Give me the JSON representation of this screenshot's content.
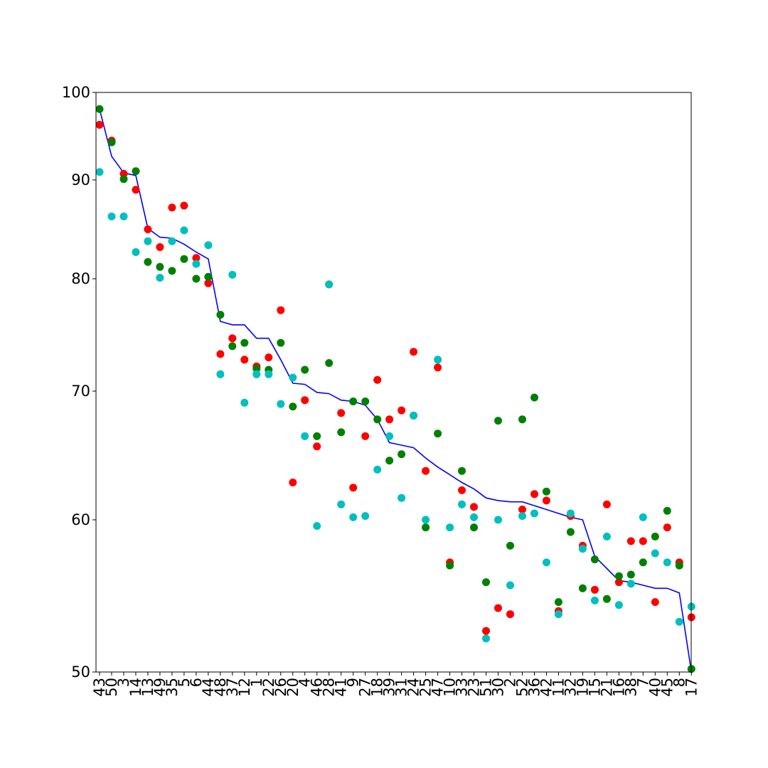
{
  "chart_data": {
    "type": "scatter",
    "title": "",
    "xlabel": "",
    "ylabel": "",
    "y_ticks": [
      50,
      60,
      70,
      80,
      90,
      100
    ],
    "ylim": [
      50,
      100
    ],
    "y_scale": "nonlinear (ticks 50, 60, 70, 80, 90, 100 unevenly spaced)",
    "grid": false,
    "legend": "none",
    "categories": [
      "43",
      "50",
      "3",
      "14",
      "13",
      "49",
      "35",
      "5",
      "6",
      "44",
      "48",
      "37",
      "12",
      "1",
      "22",
      "26",
      "20",
      "4",
      "46",
      "28",
      "41",
      "9",
      "27",
      "18",
      "39",
      "31",
      "24",
      "25",
      "47",
      "10",
      "33",
      "23",
      "51",
      "30",
      "2",
      "52",
      "36",
      "42",
      "11",
      "32",
      "19",
      "15",
      "21",
      "16",
      "38",
      "7",
      "40",
      "45",
      "8",
      "17"
    ],
    "series": [
      {
        "type": "line",
        "color": "#0000ff",
        "values": [
          98.1,
          92.7,
          90.8,
          90.5,
          85.1,
          84.2,
          84.1,
          83.5,
          82.7,
          82.0,
          76.2,
          75.9,
          75.9,
          74.7,
          74.7,
          72.8,
          70.7,
          70.6,
          69.9,
          69.8,
          69.3,
          69.2,
          68.9,
          67.8,
          66.0,
          65.8,
          65.6,
          64.8,
          64.1,
          63.5,
          62.9,
          62.4,
          61.7,
          61.5,
          61.4,
          61.4,
          61.1,
          60.8,
          60.5,
          60.2,
          60.0,
          57.6,
          56.8,
          56.0,
          55.9,
          55.7,
          55.5,
          55.5,
          55.2,
          50.0
        ]
      },
      {
        "type": "scatter",
        "color": "#ff0000",
        "values": [
          96.3,
          94.5,
          90.7,
          89.0,
          85.0,
          83.2,
          87.2,
          87.4,
          82.1,
          79.6,
          73.3,
          74.7,
          72.8,
          72.2,
          73.0,
          77.2,
          62.9,
          69.3,
          65.7,
          79.5,
          68.3,
          62.5,
          66.5,
          71.0,
          67.8,
          68.5,
          73.5,
          63.8,
          72.1,
          57.2,
          62.3,
          61.0,
          52.7,
          54.2,
          53.8,
          60.8,
          62.0,
          61.5,
          54.0,
          60.3,
          58.3,
          55.4,
          61.2,
          55.9,
          58.6,
          58.6,
          54.6,
          59.5,
          57.2,
          53.6
        ]
      },
      {
        "type": "scatter",
        "color": "#008000",
        "values": [
          98.1,
          94.3,
          90.1,
          91.0,
          81.7,
          81.2,
          80.8,
          82.0,
          80.0,
          80.2,
          76.8,
          74.0,
          74.3,
          72.0,
          71.9,
          74.3,
          68.8,
          71.9,
          66.5,
          72.5,
          66.8,
          69.2,
          69.2,
          67.8,
          64.6,
          65.1,
          68.1,
          59.5,
          66.7,
          57.0,
          63.8,
          59.5,
          55.9,
          67.7,
          58.3,
          67.8,
          69.5,
          62.2,
          54.6,
          59.2,
          55.5,
          57.4,
          54.8,
          56.3,
          56.4,
          57.2,
          58.9,
          60.7,
          57.0,
          50.2
        ]
      },
      {
        "type": "scatter",
        "color": "#00bfbf",
        "values": [
          90.9,
          86.3,
          86.3,
          82.7,
          83.8,
          80.1,
          83.8,
          84.9,
          81.5,
          83.4,
          71.5,
          80.4,
          69.1,
          71.5,
          71.5,
          69.0,
          71.2,
          66.5,
          59.6,
          79.5,
          61.2,
          60.2,
          60.3,
          63.9,
          66.5,
          61.7,
          68.1,
          60.0,
          72.8,
          59.5,
          61.2,
          60.2,
          52.2,
          60.0,
          55.7,
          60.3,
          60.5,
          57.2,
          53.8,
          60.5,
          58.1,
          54.7,
          58.9,
          54.4,
          55.8,
          60.2,
          57.8,
          57.2,
          53.3,
          54.3
        ]
      }
    ]
  }
}
